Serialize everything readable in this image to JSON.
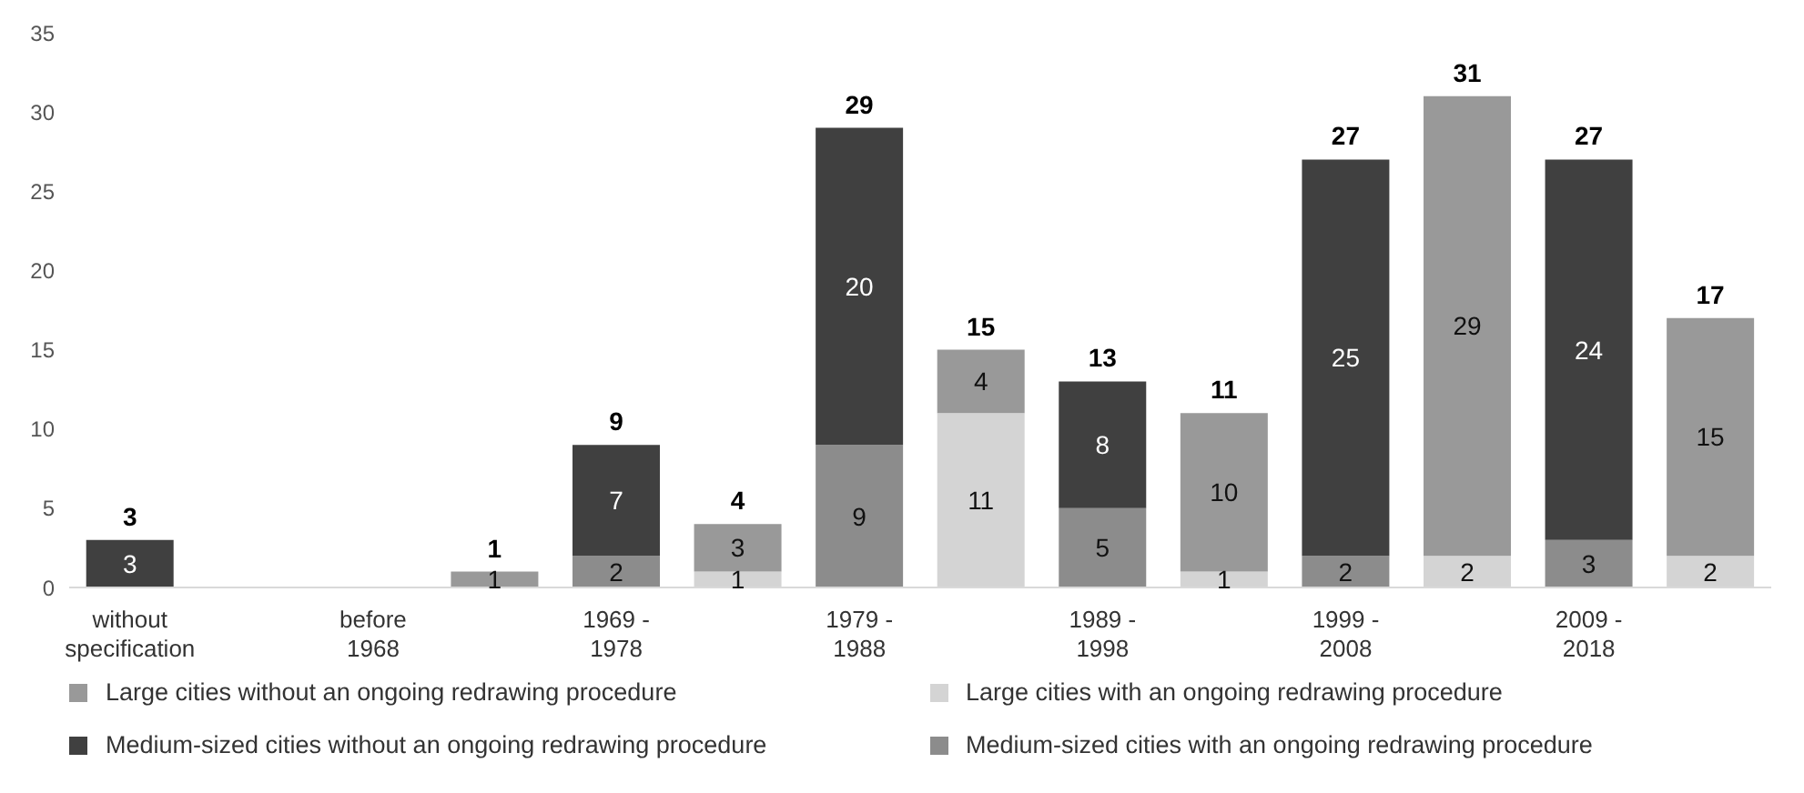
{
  "chart_data": {
    "type": "bar",
    "stacked": true,
    "categories": [
      "without specification",
      null,
      "before 1968",
      null,
      "1969 - 1978",
      null,
      "1979 - 1988",
      null,
      "1989 - 1998",
      null,
      "1999 - 2008",
      null,
      "2009 - 2018",
      null
    ],
    "series": [
      {
        "name": "Medium-sized cities with an ongoing redrawing procedure",
        "color": "#8c8c8c",
        "values": [
          null,
          null,
          null,
          null,
          2,
          null,
          9,
          null,
          5,
          null,
          2,
          null,
          3,
          null
        ],
        "value_labels": [
          null,
          null,
          null,
          null,
          "2",
          null,
          "9",
          null,
          "5",
          null,
          "2",
          null,
          "3",
          null
        ]
      },
      {
        "name": "Medium-sized cities without an ongoing redrawing procedure",
        "color": "#404040",
        "values": [
          3,
          null,
          null,
          null,
          7,
          null,
          20,
          null,
          8,
          null,
          25,
          null,
          24,
          null
        ],
        "value_labels": [
          "3",
          null,
          null,
          null,
          "7",
          null,
          "20",
          null,
          "8",
          null,
          "25",
          null,
          "24",
          null
        ]
      },
      {
        "name": "Large cities with an ongoing redrawing procedure",
        "color": "#d4d4d4",
        "values": [
          null,
          null,
          null,
          null,
          null,
          1,
          null,
          11,
          null,
          1,
          null,
          2,
          null,
          2
        ],
        "value_labels": [
          null,
          null,
          null,
          null,
          null,
          "1",
          null,
          "11",
          null,
          "1",
          null,
          "2",
          null,
          "2"
        ]
      },
      {
        "name": "Large cities without an ongoing redrawing procedure",
        "color": "#999999",
        "values": [
          null,
          null,
          null,
          1,
          null,
          3,
          null,
          4,
          null,
          10,
          null,
          29,
          null,
          15
        ],
        "value_labels": [
          null,
          null,
          null,
          "1",
          null,
          "3",
          null,
          "4",
          null,
          "10",
          null,
          "29",
          null,
          "15"
        ]
      }
    ],
    "totals": [
      "3",
      null,
      null,
      "1",
      "9",
      "4",
      "29",
      "15",
      "13",
      "11",
      "27",
      "31",
      "27",
      "17"
    ],
    "ylim": [
      0,
      35
    ],
    "yticks": [
      0,
      5,
      10,
      15,
      20,
      25,
      30,
      35
    ],
    "grid": false,
    "legend": "bottom"
  }
}
